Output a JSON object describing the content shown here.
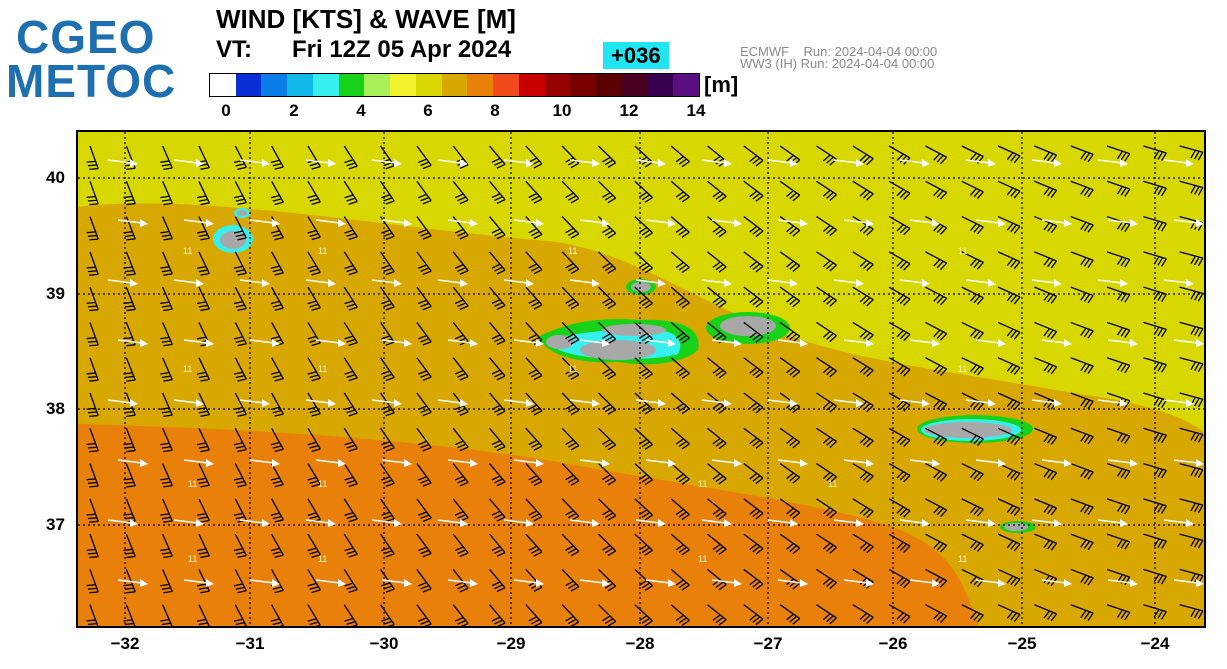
{
  "logo": {
    "line1": "CGEO",
    "line2": "METOC",
    "color": "#1d6fb0"
  },
  "header": {
    "title": "WIND [KTS] & WAVE [M]",
    "vt_label": "VT:",
    "vt_value": "Fri 12Z 05 Apr 2024",
    "forecast_step": "+036",
    "run_lines": "ECMWF    Run: 2024-04-04 00:00\nWW3 (IH) Run: 2024-04-04 00:00"
  },
  "legend": {
    "unit": "[m]",
    "ticks": [
      "0",
      "2",
      "4",
      "6",
      "8",
      "10",
      "12",
      "14"
    ],
    "colors": [
      "#ffffff",
      "#0a2fd6",
      "#0a7de8",
      "#10b8e8",
      "#36f0f0",
      "#18d21a",
      "#a8f05a",
      "#f2f22e",
      "#d8d800",
      "#d8a800",
      "#e8800a",
      "#f24a1a",
      "#c80000",
      "#980000",
      "#780000",
      "#5a0000",
      "#4a0020",
      "#3a0050",
      "#5a1080"
    ]
  },
  "map": {
    "lat_labels": [
      "40",
      "39",
      "38",
      "37"
    ],
    "lon_labels": [
      "−32",
      "−31",
      "−30",
      "−29",
      "−28",
      "−27",
      "−26",
      "−25",
      "−24"
    ],
    "wind_speed_label": "11",
    "colors": {
      "yellow": "#d8d800",
      "gold": "#d8a800",
      "orange": "#e8800a",
      "land": "#a8a8a8",
      "coast_green": "#18d21a",
      "coast_cyan": "#36f0f0"
    }
  }
}
